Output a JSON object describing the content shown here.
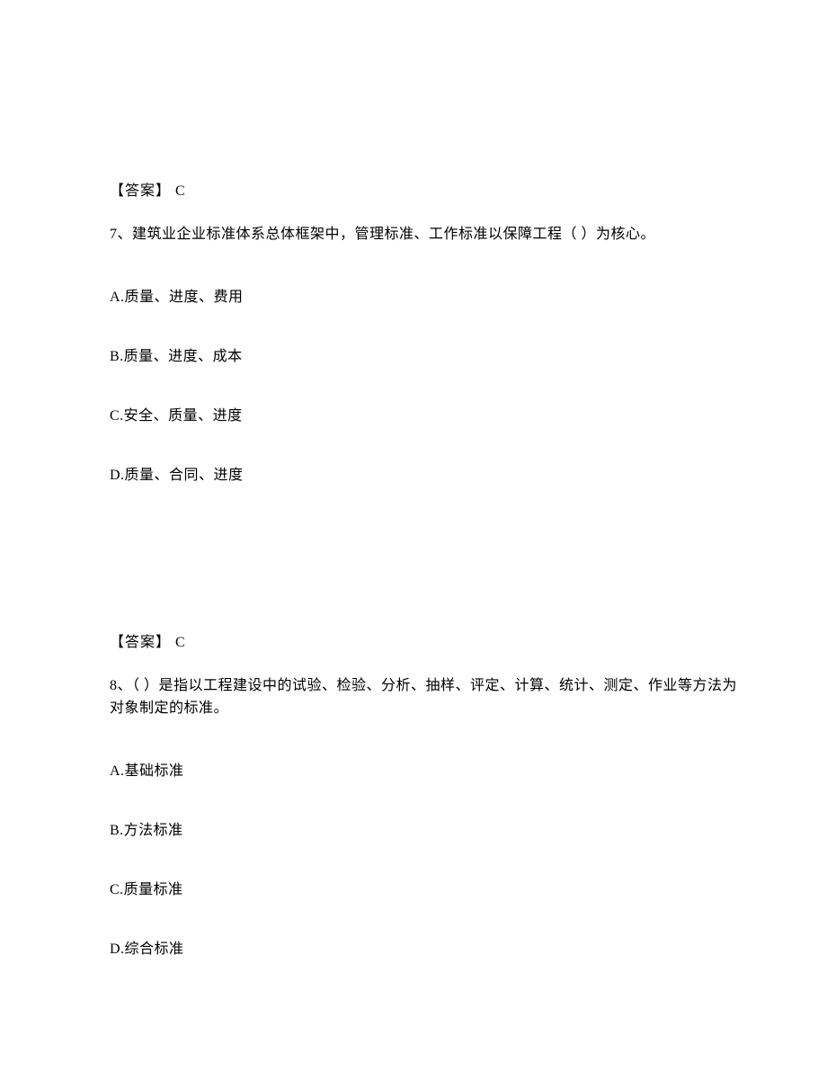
{
  "q7": {
    "prev_answer": "【答案】 C",
    "question": "7、建筑业企业标准体系总体框架中，管理标准、工作标准以保障工程（ ）为核心。",
    "options": {
      "a": "A.质量、进度、费用",
      "b": "B.质量、进度、成本",
      "c": "C.安全、质量、进度",
      "d": "D.质量、合同、进度"
    }
  },
  "q8": {
    "prev_answer": "【答案】 C",
    "question": "8、（ ）是指以工程建设中的试验、检验、分析、抽样、评定、计算、统计、测定、作业等方法为对象制定的标准。",
    "options": {
      "a": "A.基础标准",
      "b": "B.方法标准",
      "c": "C.质量标准",
      "d": "D.综合标准"
    }
  }
}
